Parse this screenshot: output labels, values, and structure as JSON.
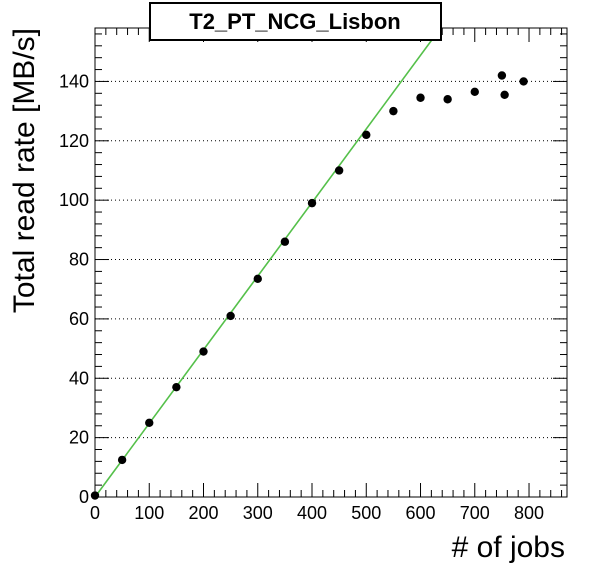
{
  "chart_data": {
    "type": "scatter",
    "title": "T2_PT_NCG_Lisbon",
    "xlabel": "# of jobs",
    "ylabel": "Total read rate [MB/s]",
    "xlim": [
      0,
      870
    ],
    "ylim": [
      0,
      158
    ],
    "x_ticks": [
      0,
      100,
      200,
      300,
      400,
      500,
      600,
      700,
      800
    ],
    "y_ticks": [
      0,
      20,
      40,
      60,
      80,
      100,
      120,
      140
    ],
    "grid": "horizontal-dotted",
    "marker_color": "#000000",
    "fit_color": "#55c04a",
    "points": [
      {
        "x": 0,
        "y": 0.5
      },
      {
        "x": 50,
        "y": 12.5
      },
      {
        "x": 100,
        "y": 25
      },
      {
        "x": 150,
        "y": 37
      },
      {
        "x": 200,
        "y": 49
      },
      {
        "x": 250,
        "y": 61
      },
      {
        "x": 300,
        "y": 73.5
      },
      {
        "x": 350,
        "y": 86
      },
      {
        "x": 400,
        "y": 99
      },
      {
        "x": 450,
        "y": 110
      },
      {
        "x": 500,
        "y": 122
      },
      {
        "x": 550,
        "y": 130
      },
      {
        "x": 600,
        "y": 134.5
      },
      {
        "x": 650,
        "y": 134
      },
      {
        "x": 700,
        "y": 136.5
      },
      {
        "x": 750,
        "y": 142
      },
      {
        "x": 755,
        "y": 135.5
      },
      {
        "x": 790,
        "y": 140
      }
    ],
    "fit_line": {
      "x": [
        0,
        625
      ],
      "y": [
        0,
        155
      ]
    }
  }
}
